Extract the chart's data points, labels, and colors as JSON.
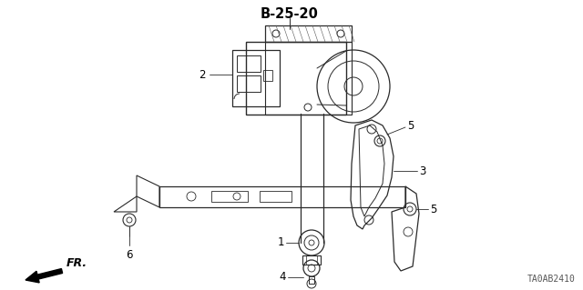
{
  "title": "B-25-20",
  "part_number": "TA0AB2410",
  "fr_label": "FR.",
  "bg_color": "#ffffff",
  "line_color": "#2a2a2a",
  "text_color": "#000000",
  "title_fontsize": 10.5,
  "label_fontsize": 8.5,
  "small_fontsize": 7,
  "figsize": [
    6.4,
    3.19
  ],
  "dpi": 100
}
